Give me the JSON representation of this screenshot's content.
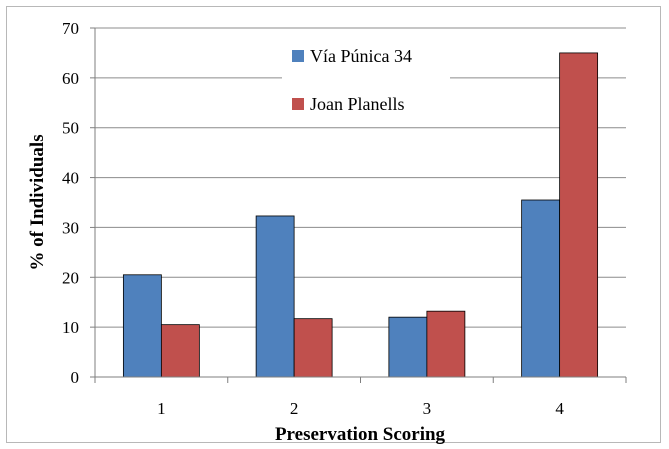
{
  "chart_data": {
    "type": "bar",
    "categories": [
      "1",
      "2",
      "3",
      "4"
    ],
    "series": [
      {
        "name": "Vía Púnica 34",
        "color": "#4f81bd",
        "values": [
          20.5,
          32.3,
          12.0,
          35.5
        ]
      },
      {
        "name": "Joan Planells",
        "color": "#c0504d",
        "values": [
          10.5,
          11.7,
          13.2,
          65.0
        ]
      }
    ],
    "title": "",
    "xlabel": "Preservation Scoring",
    "ylabel": "% of Individuals",
    "ylim": [
      0,
      70
    ],
    "yticks": [
      "0",
      "10",
      "20",
      "30",
      "40",
      "50",
      "60",
      "70"
    ],
    "grid": true,
    "legend_position": "top-center"
  }
}
